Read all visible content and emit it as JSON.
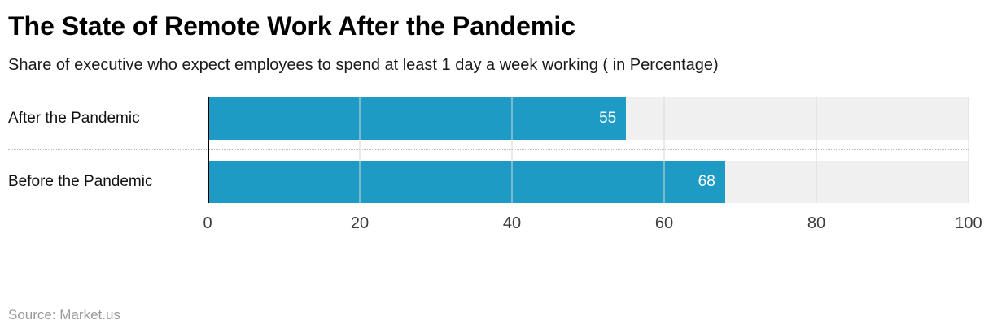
{
  "header": {
    "title": "The State of Remote Work After the Pandemic",
    "subtitle": "Share of executive who expect employees to spend at least 1 day a week working ( in Percentage)"
  },
  "footer": {
    "source": "Source: Market.us"
  },
  "colors": {
    "bar": "#1e9bc4",
    "track": "#f0f0f0",
    "gridline": "#d7d7d7",
    "axis": "#000000",
    "value_text": "#ffffff"
  },
  "chart_data": {
    "type": "bar",
    "orientation": "horizontal",
    "title": "The State of Remote Work After the Pandemic",
    "subtitle": "Share of executive who expect employees to spend at least 1 day a week working ( in Percentage)",
    "categories": [
      "After the Pandemic",
      "Before the Pandemic"
    ],
    "values": [
      55,
      68
    ],
    "xlabel": "",
    "ylabel": "",
    "xlim": [
      0,
      100
    ],
    "xticks": [
      0,
      20,
      40,
      60,
      80,
      100
    ],
    "grid": "vertical",
    "legend": false,
    "source": "Source: Market.us"
  }
}
